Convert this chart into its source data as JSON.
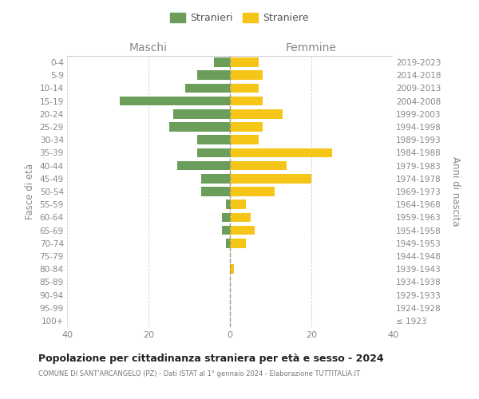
{
  "age_groups": [
    "100+",
    "95-99",
    "90-94",
    "85-89",
    "80-84",
    "75-79",
    "70-74",
    "65-69",
    "60-64",
    "55-59",
    "50-54",
    "45-49",
    "40-44",
    "35-39",
    "30-34",
    "25-29",
    "20-24",
    "15-19",
    "10-14",
    "5-9",
    "0-4"
  ],
  "birth_years": [
    "≤ 1923",
    "1924-1928",
    "1929-1933",
    "1934-1938",
    "1939-1943",
    "1944-1948",
    "1949-1953",
    "1954-1958",
    "1959-1963",
    "1964-1968",
    "1969-1973",
    "1974-1978",
    "1979-1983",
    "1984-1988",
    "1989-1993",
    "1994-1998",
    "1999-2003",
    "2004-2008",
    "2009-2013",
    "2014-2018",
    "2019-2023"
  ],
  "maschi": [
    0,
    0,
    0,
    0,
    0,
    0,
    1,
    2,
    2,
    1,
    7,
    7,
    13,
    8,
    8,
    15,
    14,
    27,
    11,
    8,
    4
  ],
  "femmine": [
    0,
    0,
    0,
    0,
    1,
    0,
    4,
    6,
    5,
    4,
    11,
    20,
    14,
    25,
    7,
    8,
    13,
    8,
    7,
    8,
    7
  ],
  "color_maschi": "#6a9e5a",
  "color_femmine": "#f5c518",
  "title": "Popolazione per cittadinanza straniera per età e sesso - 2024",
  "subtitle": "COMUNE DI SANT'ARCANGELO (PZ) - Dati ISTAT al 1° gennaio 2024 - Elaborazione TUTTITALIA.IT",
  "ylabel_left": "Fasce di età",
  "ylabel_right": "Anni di nascita",
  "xlabel_left": "Maschi",
  "xlabel_right": "Femmine",
  "legend_maschi": "Stranieri",
  "legend_femmine": "Straniere",
  "xlim": 40,
  "background_color": "#ffffff",
  "grid_color": "#cccccc",
  "xticks": [
    40,
    20,
    0,
    20,
    40
  ]
}
